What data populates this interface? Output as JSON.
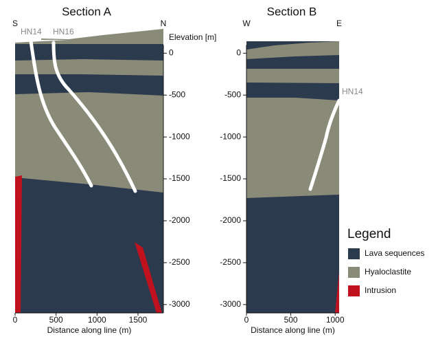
{
  "chart_data": [
    {
      "type": "cross-section",
      "title": "Section A",
      "left_label": "S",
      "right_label": "N",
      "y_axis_label": "Elevation [m]",
      "x_axis_label": "Distance along line (m)",
      "y_axis_side": "right",
      "xlim": [
        0,
        1810
      ],
      "xticks": [
        0,
        500,
        1000,
        1500
      ],
      "ylim": [
        -3100,
        290
      ],
      "yticks": [
        0,
        -500,
        -1000,
        -1500,
        -2000,
        -2500,
        -3000
      ],
      "wells": [
        "HN14",
        "HN16"
      ]
    },
    {
      "type": "cross-section",
      "title": "Section B",
      "left_label": "W",
      "right_label": "E",
      "x_axis_label": "Distance along line (m)",
      "y_axis_side": "left",
      "xlim": [
        0,
        1045
      ],
      "xticks": [
        0,
        500,
        1000
      ],
      "ylim": [
        -3100,
        290
      ],
      "yticks": [
        0,
        -500,
        -1000,
        -1500,
        -2000,
        -2500,
        -3000
      ],
      "wells": [
        "HN14"
      ]
    }
  ],
  "legend": {
    "title": "Legend",
    "items": [
      {
        "label": "Lava sequences",
        "color": "#2b3a4c"
      },
      {
        "label": "Hyaloclastite",
        "color": "#8a8a79"
      },
      {
        "label": "Intrusion",
        "color": "#c0111f"
      }
    ]
  }
}
